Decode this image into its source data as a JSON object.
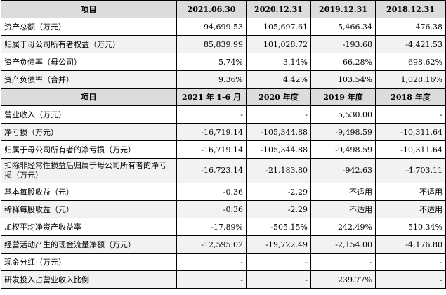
{
  "table1": {
    "headers": [
      "项目",
      "2021.06.30",
      "2020.12.31",
      "2019.12.31",
      "2018.12.31"
    ],
    "rows": [
      [
        "资产总额（万元）",
        "94,699.53",
        "105,697.61",
        "5,466.34",
        "476.38"
      ],
      [
        "归属于母公司所有者权益（万元）",
        "85,839.99",
        "101,028.72",
        "-193.68",
        "-4,421.53"
      ],
      [
        "资产负债率（母公司）",
        "5.74%",
        "3.14%",
        "66.28%",
        "698.62%"
      ],
      [
        "资产负债率（合并）",
        "9.36%",
        "4.42%",
        "103.54%",
        "1,028.16%"
      ]
    ]
  },
  "table2": {
    "headers": [
      "项目",
      "2021 年 1-6 月",
      "2020 年度",
      "2019 年度",
      "2018 年度"
    ],
    "rows": [
      [
        "营业收入（万元）",
        "-",
        "-",
        "5,530.00",
        "-"
      ],
      [
        "净亏损（万元）",
        "-16,719.14",
        "-105,344.88",
        "-9,498.59",
        "-10,311.64"
      ],
      [
        "归属于母公司所有者的净亏损（万元）",
        "-16,719.14",
        "-105,344.88",
        "-9,498.59",
        "-10,311.64"
      ],
      [
        "扣除非经常性损益后归属于母公司所有者的净亏损（万元）",
        "-16,723.14",
        "-21,183.80",
        "-942.63",
        "-4,703.11"
      ],
      [
        "基本每股收益（元）",
        "-0.36",
        "-2.29",
        "不适用",
        "不适用"
      ],
      [
        "稀释每股收益（元）",
        "-0.36",
        "-2.29",
        "不适用",
        "不适用"
      ],
      [
        "加权平均净资产收益率",
        "-17.89%",
        "-505.15%",
        "242.49%",
        "510.34%"
      ],
      [
        "经营活动产生的现金流量净额（万元）",
        "-12,595.02",
        "-19,722.49",
        "-2,154.00",
        "-4,176.80"
      ],
      [
        "现金分红（万元）",
        "-",
        "-",
        "-",
        "-"
      ],
      [
        "研发投入占营业收入比例",
        "-",
        "-",
        "239.77%",
        "-"
      ]
    ]
  }
}
